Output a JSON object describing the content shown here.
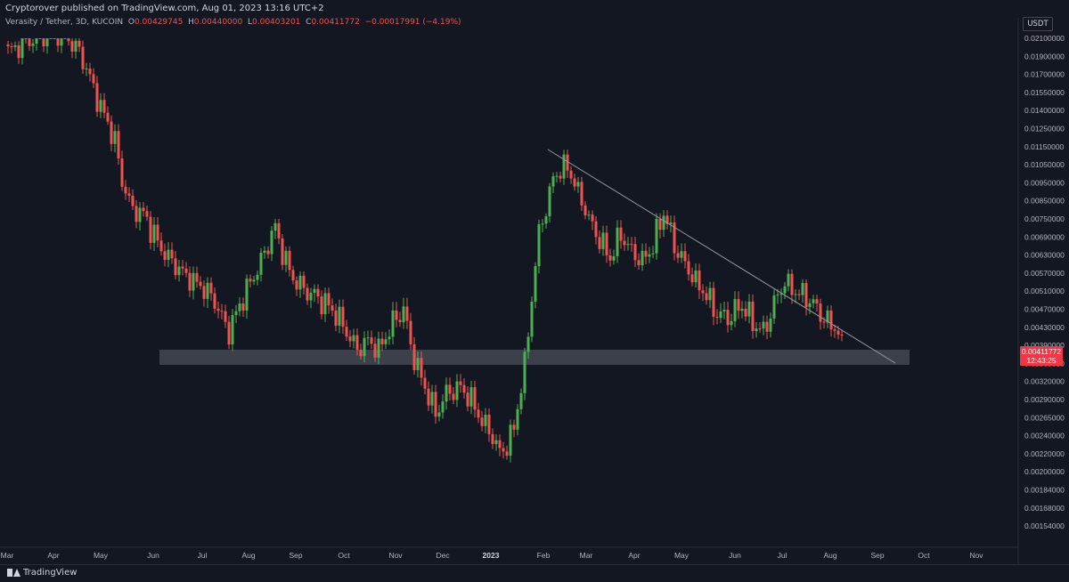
{
  "header": {
    "published": "Cryptorover published on TradingView.com, Aug 01, 2023 13:16 UTC+2",
    "symbol": "Verasity / Tether, 3D, KUCOIN",
    "o_label": "O",
    "o_value": "0.00429745",
    "h_label": "H",
    "h_value": "0.00440000",
    "l_label": "L",
    "l_value": "0.00403201",
    "c_label": "C",
    "c_value": "0.00411772",
    "change": "−0.00017991 (−4.19%)",
    "currency": "USDT"
  },
  "footer": {
    "brand": "TradingView"
  },
  "colors": {
    "background": "#131722",
    "up": "#26a69a",
    "up_body": "#4caf50",
    "down": "#ef5350",
    "zone": "#4a4f5a",
    "trendline": "#9598a1",
    "price_badge": "#f23645"
  },
  "chart_data": {
    "type": "candlestick",
    "scale": "log",
    "y_ticks": [
      "0.02100000",
      "0.01900000",
      "0.01700000",
      "0.01550000",
      "0.01400000",
      "0.01250000",
      "0.01150000",
      "0.01050000",
      "0.00950000",
      "0.00850000",
      "0.00750000",
      "0.00690000",
      "0.00630000",
      "0.00570000",
      "0.00510000",
      "0.00470000",
      "0.00430000",
      "0.00390000",
      "0.00350000",
      "0.00320000",
      "0.00290000",
      "0.00265000",
      "0.00240000",
      "0.00220000",
      "0.00200000",
      "0.00184000",
      "0.00168000",
      "0.00154000"
    ],
    "x_ticks": [
      "Mar",
      "Apr",
      "May",
      "Jun",
      "Jul",
      "Aug",
      "Sep",
      "Oct",
      "Nov",
      "Dec",
      "2023",
      "Feb",
      "Mar",
      "Apr",
      "May",
      "Jun",
      "Jul",
      "Aug",
      "Sep",
      "Oct",
      "Nov"
    ],
    "last_price": "0.00411772",
    "countdown": "12:43:25",
    "support_zone": [
      0.0038,
      0.00423
    ],
    "trendline": {
      "from": [
        "Feb 2023",
        0.0118
      ],
      "to": [
        "Sep 2023",
        0.0038
      ]
    },
    "close_path": [
      [
        0,
        0.0195
      ],
      [
        5,
        0.0205
      ],
      [
        10,
        0.0215
      ],
      [
        15,
        0.0218
      ],
      [
        20,
        0.0195
      ],
      [
        25,
        0.015
      ],
      [
        30,
        0.0118
      ],
      [
        32,
        0.0096
      ],
      [
        35,
        0.008
      ],
      [
        38,
        0.0078
      ],
      [
        40,
        0.0072
      ],
      [
        42,
        0.0067
      ],
      [
        45,
        0.0062
      ],
      [
        50,
        0.0056
      ],
      [
        55,
        0.0052
      ],
      [
        58,
        0.0049
      ],
      [
        60,
        0.0045
      ],
      [
        62,
        0.0042
      ],
      [
        64,
        0.0046
      ],
      [
        67,
        0.0052
      ],
      [
        70,
        0.0058
      ],
      [
        73,
        0.0067
      ],
      [
        75,
        0.0072
      ],
      [
        77,
        0.0064
      ],
      [
        80,
        0.0055
      ],
      [
        84,
        0.0051
      ],
      [
        88,
        0.0049
      ],
      [
        92,
        0.0046
      ],
      [
        95,
        0.0042
      ],
      [
        98,
        0.0038
      ],
      [
        101,
        0.004
      ],
      [
        104,
        0.0038
      ],
      [
        108,
        0.0044
      ],
      [
        111,
        0.0047
      ],
      [
        114,
        0.0036
      ],
      [
        117,
        0.0031
      ],
      [
        120,
        0.0027
      ],
      [
        123,
        0.003
      ],
      [
        127,
        0.0031
      ],
      [
        130,
        0.0029
      ],
      [
        133,
        0.0026
      ],
      [
        136,
        0.0024
      ],
      [
        138,
        0.0022
      ],
      [
        140,
        0.0023
      ],
      [
        142,
        0.0025
      ],
      [
        145,
        0.0035
      ],
      [
        147,
        0.005
      ],
      [
        149,
        0.007
      ],
      [
        151,
        0.008
      ],
      [
        153,
        0.0098
      ],
      [
        155,
        0.0102
      ],
      [
        157,
        0.0104
      ],
      [
        160,
        0.009
      ],
      [
        163,
        0.0075
      ],
      [
        166,
        0.0068
      ],
      [
        169,
        0.0062
      ],
      [
        172,
        0.007
      ],
      [
        175,
        0.0064
      ],
      [
        178,
        0.0061
      ],
      [
        181,
        0.0066
      ],
      [
        184,
        0.0078
      ],
      [
        187,
        0.0066
      ],
      [
        190,
        0.006
      ],
      [
        193,
        0.0054
      ],
      [
        196,
        0.005
      ],
      [
        199,
        0.0046
      ],
      [
        202,
        0.0045
      ],
      [
        206,
        0.0048
      ],
      [
        209,
        0.0044
      ],
      [
        212,
        0.0042
      ],
      [
        215,
        0.0048
      ],
      [
        218,
        0.0054
      ],
      [
        221,
        0.0051
      ],
      [
        224,
        0.005
      ],
      [
        227,
        0.0047
      ],
      [
        230,
        0.0044
      ],
      [
        232,
        0.0043
      ],
      [
        234,
        0.0041177
      ]
    ]
  }
}
